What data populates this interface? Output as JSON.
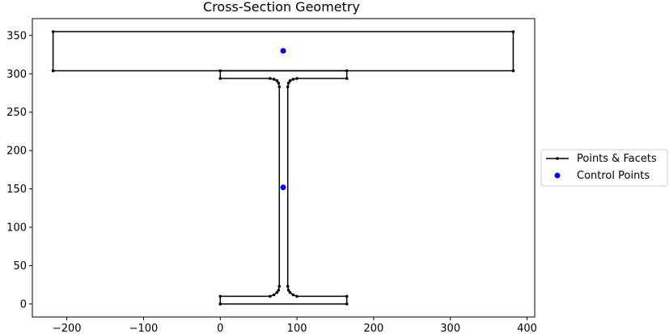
{
  "chart_data": {
    "type": "line",
    "title": "Cross-Section Geometry",
    "xlabel": "",
    "ylabel": "",
    "xlim": [
      -245,
      410
    ],
    "ylim": [
      -17,
      372
    ],
    "xticks": [
      -200,
      -100,
      0,
      100,
      200,
      300,
      400
    ],
    "yticks": [
      0,
      50,
      100,
      150,
      200,
      250,
      300,
      350
    ],
    "grid": false,
    "legend_placement": "center-right-outside",
    "colors": {
      "facets": "#000000",
      "control_points": "#0000ff"
    },
    "series": [
      {
        "name": "Points & Facets",
        "kind": "facets",
        "polygons": [
          [
            [
              0,
              0
            ],
            [
              165,
              0
            ],
            [
              165,
              10
            ],
            [
              100,
              10
            ],
            [
              95,
              12
            ],
            [
              91,
              15
            ],
            [
              89,
              18
            ],
            [
              88,
              23
            ],
            [
              88,
              283
            ],
            [
              89,
              288
            ],
            [
              91,
              291
            ],
            [
              95,
              293
            ],
            [
              100,
              294
            ],
            [
              165,
              294
            ],
            [
              165,
              304
            ],
            [
              0,
              304
            ],
            [
              0,
              294
            ],
            [
              65,
              294
            ],
            [
              70,
              293
            ],
            [
              74,
              291
            ],
            [
              76,
              288
            ],
            [
              77,
              283
            ],
            [
              77,
              23
            ],
            [
              76,
              18
            ],
            [
              74,
              15
            ],
            [
              70,
              12
            ],
            [
              65,
              10
            ],
            [
              0,
              10
            ],
            [
              0,
              0
            ]
          ],
          [
            [
              -218,
              304
            ],
            [
              382,
              304
            ],
            [
              382,
              355
            ],
            [
              -218,
              355
            ],
            [
              -218,
              304
            ]
          ]
        ]
      },
      {
        "name": "Control Points",
        "kind": "points",
        "points": [
          [
            82,
            152
          ],
          [
            82,
            330
          ]
        ]
      }
    ]
  }
}
